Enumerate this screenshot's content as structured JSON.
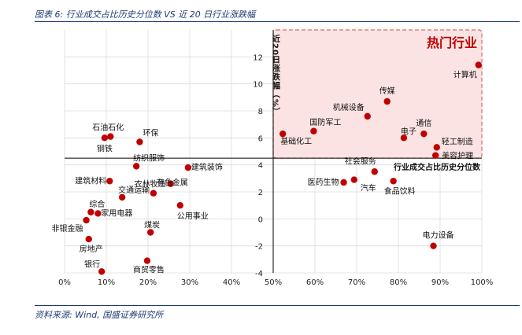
{
  "caption": "图表 6:  行业成交占比历史分位数 VS 近 20 日行业涨跌幅",
  "source": "资料来源: Wind, 国盛证券研究所",
  "colors": {
    "point": "#c00000",
    "highlight_border": "#e06666",
    "highlight_fill": "#fbe3e3",
    "highlight_title": "#c00000",
    "frame": "#1f3a72"
  },
  "chart_data": {
    "type": "scatter",
    "title": "",
    "xlabel": "行业成交占比历史分位数",
    "ylabel": "近20日涨跌幅（%）",
    "xlim": [
      0,
      100
    ],
    "ylim": [
      -4,
      14
    ],
    "x_ticks": [
      0,
      10,
      20,
      30,
      40,
      50,
      60,
      70,
      80,
      90,
      100
    ],
    "x_tick_labels": [
      "0%",
      "10%",
      "20%",
      "30%",
      "40%",
      "50%",
      "60%",
      "70%",
      "80%",
      "90%",
      "100%"
    ],
    "y_ticks": [
      -4,
      -2,
      0,
      2,
      4,
      6,
      8,
      10,
      12
    ],
    "y_tick_labels": [
      "-4",
      "-2",
      "0",
      "2",
      "4",
      "6",
      "8",
      "10",
      "12"
    ],
    "x_axis_crossing_y": 4.5,
    "y_axis_crossing_x": 50,
    "highlight_region": {
      "label": "热门行业",
      "x": [
        50,
        100
      ],
      "y": [
        4.5,
        14
      ]
    },
    "points": [
      {
        "name": "计算机",
        "x": 99.2,
        "y": 11.4
      },
      {
        "name": "传媒",
        "x": 77.3,
        "y": 8.7
      },
      {
        "name": "机械设备",
        "x": 72.6,
        "y": 7.6
      },
      {
        "name": "国防军工",
        "x": 59.7,
        "y": 6.5
      },
      {
        "name": "基础化工",
        "x": 52.3,
        "y": 6.3
      },
      {
        "name": "电子",
        "x": 81.3,
        "y": 6.0
      },
      {
        "name": "通信",
        "x": 86.1,
        "y": 6.3
      },
      {
        "name": "轻工制造",
        "x": 89.2,
        "y": 5.3
      },
      {
        "name": "美容护理",
        "x": 88.9,
        "y": 4.7
      },
      {
        "name": "石油石化",
        "x": 11.0,
        "y": 6.1
      },
      {
        "name": "钢铁",
        "x": 9.6,
        "y": 6.0
      },
      {
        "name": "环保",
        "x": 18.0,
        "y": 5.7
      },
      {
        "name": "纺织服饰",
        "x": 17.2,
        "y": 3.9
      },
      {
        "name": "建筑装饰",
        "x": 29.6,
        "y": 3.8
      },
      {
        "name": "建筑材料",
        "x": 10.8,
        "y": 2.8
      },
      {
        "name": "农林牧渔",
        "x": 25.4,
        "y": 2.6
      },
      {
        "name": "有色金属",
        "x": 21.3,
        "y": 1.9
      },
      {
        "name": "交通运输",
        "x": 13.8,
        "y": 1.6
      },
      {
        "name": "公用事业",
        "x": 27.7,
        "y": 1.0
      },
      {
        "name": "综合",
        "x": 6.3,
        "y": 0.5
      },
      {
        "name": "家用电器",
        "x": 8.0,
        "y": 0.4
      },
      {
        "name": "非银金融",
        "x": 5.2,
        "y": -0.1
      },
      {
        "name": "煤炭",
        "x": 20.6,
        "y": -1.0
      },
      {
        "name": "房地产",
        "x": 5.8,
        "y": -1.5
      },
      {
        "name": "商贸零售",
        "x": 19.8,
        "y": -3.1
      },
      {
        "name": "银行",
        "x": 8.9,
        "y": -3.9
      },
      {
        "name": "社会服务",
        "x": 74.3,
        "y": 3.5
      },
      {
        "name": "医药生物",
        "x": 66.9,
        "y": 2.7
      },
      {
        "name": "汽车",
        "x": 69.4,
        "y": 2.9
      },
      {
        "name": "食品饮料",
        "x": 78.8,
        "y": 2.8
      },
      {
        "name": "电力设备",
        "x": 88.4,
        "y": -2.0
      }
    ]
  }
}
